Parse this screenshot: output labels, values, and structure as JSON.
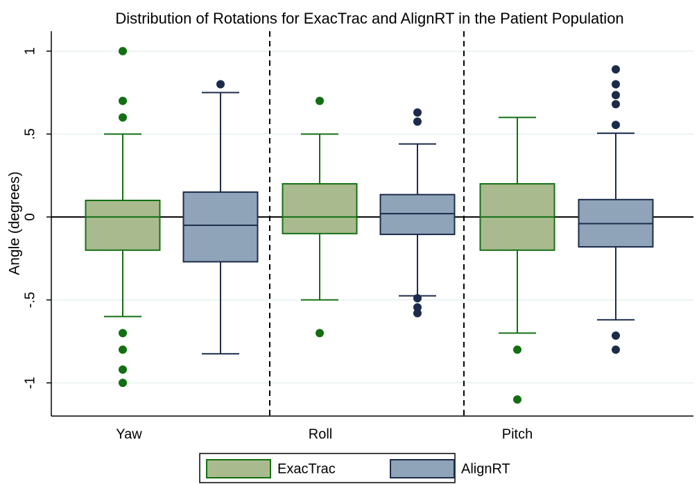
{
  "chart_data": {
    "type": "box",
    "title": "Distribution of Rotations for ExacTrac and AlignRT in the Patient Population",
    "y_label": "Angle (degrees)",
    "categories": [
      "Yaw",
      "Roll",
      "Pitch"
    ],
    "ylim": [
      -1.2,
      1.12
    ],
    "yticks": [
      -1,
      {
        "value": -0.5,
        "label": "-.5"
      },
      0,
      {
        "value": 0.5,
        "label": ".5"
      },
      1
    ],
    "grid": true,
    "reference_line": 0,
    "legend": "bottom",
    "series": [
      {
        "name": "ExacTrac",
        "color": "#a9bb8e",
        "edge_color": "#136f13",
        "boxes": [
          {
            "low": -0.6,
            "q1": -0.2,
            "median": 0,
            "q3": 0.1,
            "high": 0.5,
            "outliers": [
              1.0,
              0.7,
              0.6,
              -0.7,
              -0.8,
              -0.92,
              -1.0
            ]
          },
          {
            "low": -0.5,
            "q1": -0.1,
            "median": 0,
            "q3": 0.2,
            "high": 0.5,
            "outliers": [
              0.7,
              -0.7
            ]
          },
          {
            "low": -0.7,
            "q1": -0.2,
            "median": 0,
            "q3": 0.2,
            "high": 0.6,
            "outliers": [
              -0.8,
              -1.1
            ]
          }
        ]
      },
      {
        "name": "AlignRT",
        "color": "#8fa3b9",
        "edge_color": "#1c2b4a",
        "boxes": [
          {
            "low": -0.825,
            "q1": -0.27,
            "median": -0.05,
            "q3": 0.15,
            "high": 0.75,
            "outliers": [
              0.8
            ]
          },
          {
            "low": -0.475,
            "q1": -0.105,
            "median": 0.02,
            "q3": 0.135,
            "high": 0.44,
            "outliers": [
              0.63,
              0.575,
              -0.49,
              -0.545,
              -0.58
            ]
          },
          {
            "low": -0.62,
            "q1": -0.18,
            "median": -0.04,
            "q3": 0.105,
            "high": 0.505,
            "outliers": [
              0.89,
              0.8,
              0.735,
              0.68,
              0.555,
              -0.715,
              -0.8
            ]
          }
        ]
      }
    ]
  }
}
